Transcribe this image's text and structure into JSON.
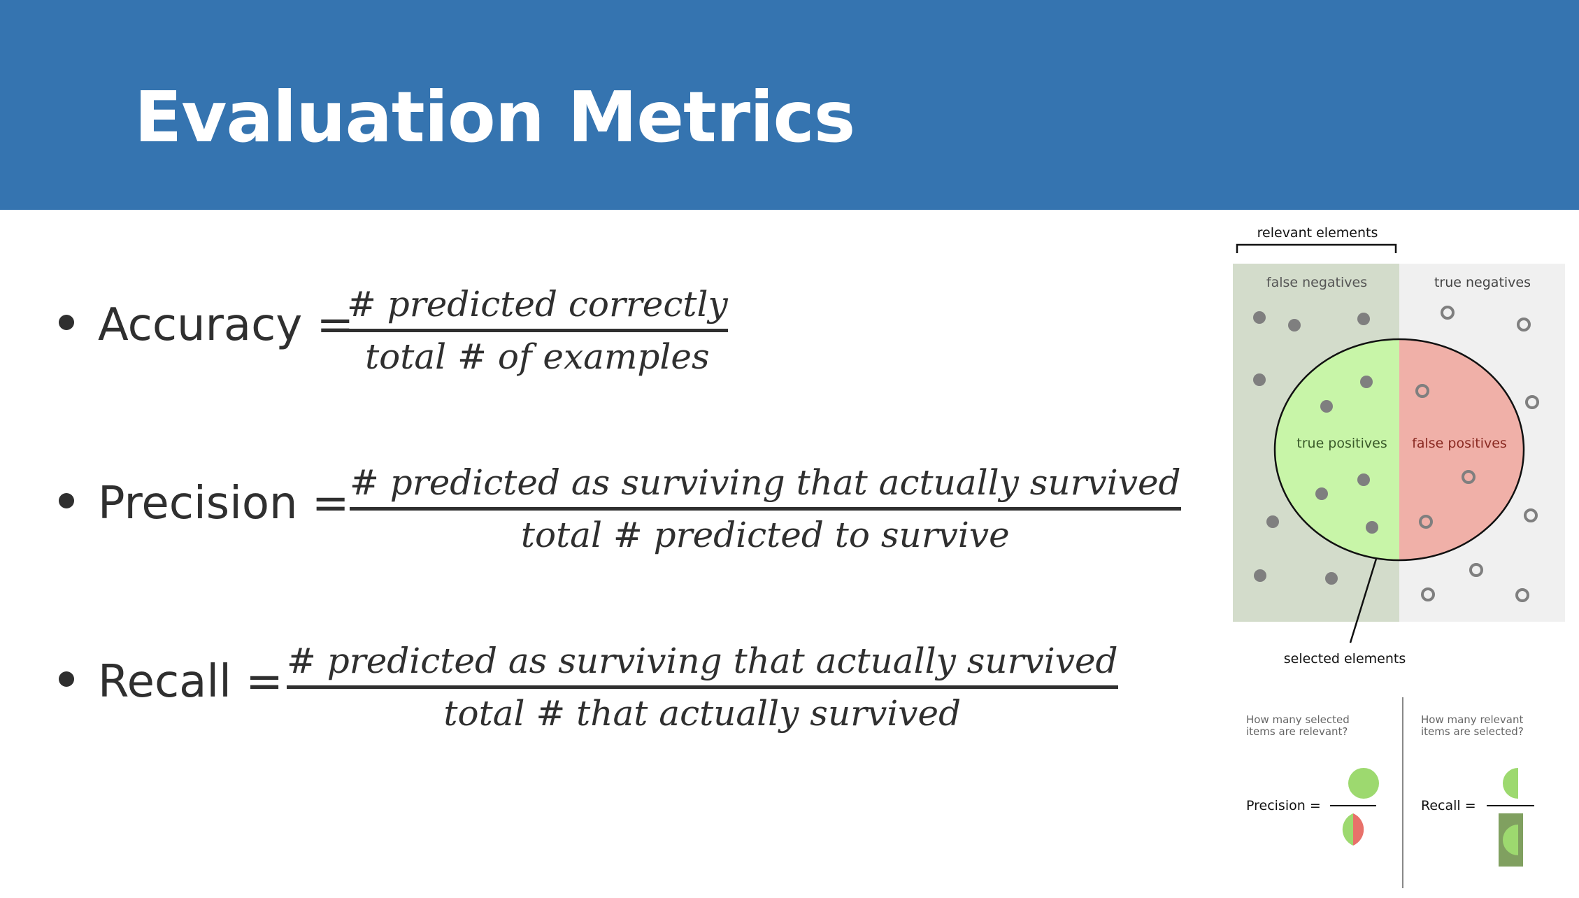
{
  "slide": {
    "title": "Evaluation Metrics"
  },
  "metrics": [
    {
      "name": "Accuracy",
      "lhs": "Accuracy =",
      "numerator": "# predicted correctly",
      "denominator": "total # of examples"
    },
    {
      "name": "Precision",
      "lhs": "Precision =",
      "numerator": "# predicted as surviving that actually survived",
      "denominator": "total # predicted to survive"
    },
    {
      "name": "Recall",
      "lhs": "Recall =",
      "numerator": "# predicted as surviving that actually survived",
      "denominator": "total # that actually survived"
    }
  ],
  "diagram": {
    "relevant_label": "relevant elements",
    "false_negatives": "false negatives",
    "true_negatives": "true negatives",
    "true_positives": "true positives",
    "false_positives": "false positives",
    "selected_label": "selected elements",
    "precision_question_1": "How many selected",
    "precision_question_2": "items are relevant?",
    "recall_question_1": "How many relevant",
    "recall_question_2": "items are selected?",
    "precision_eq": "Precision =",
    "recall_eq": "Recall =",
    "colors": {
      "relevant_bg": "#d3dccb",
      "irrelevant_bg": "#f0f0f0",
      "true_positive": "#c8f5a8",
      "false_positive": "#f0b0a8",
      "green_half": "#9dd96f",
      "red_half": "#e8716a",
      "dark_green_box": "#80a060",
      "dot": "#7f7f7f"
    }
  }
}
